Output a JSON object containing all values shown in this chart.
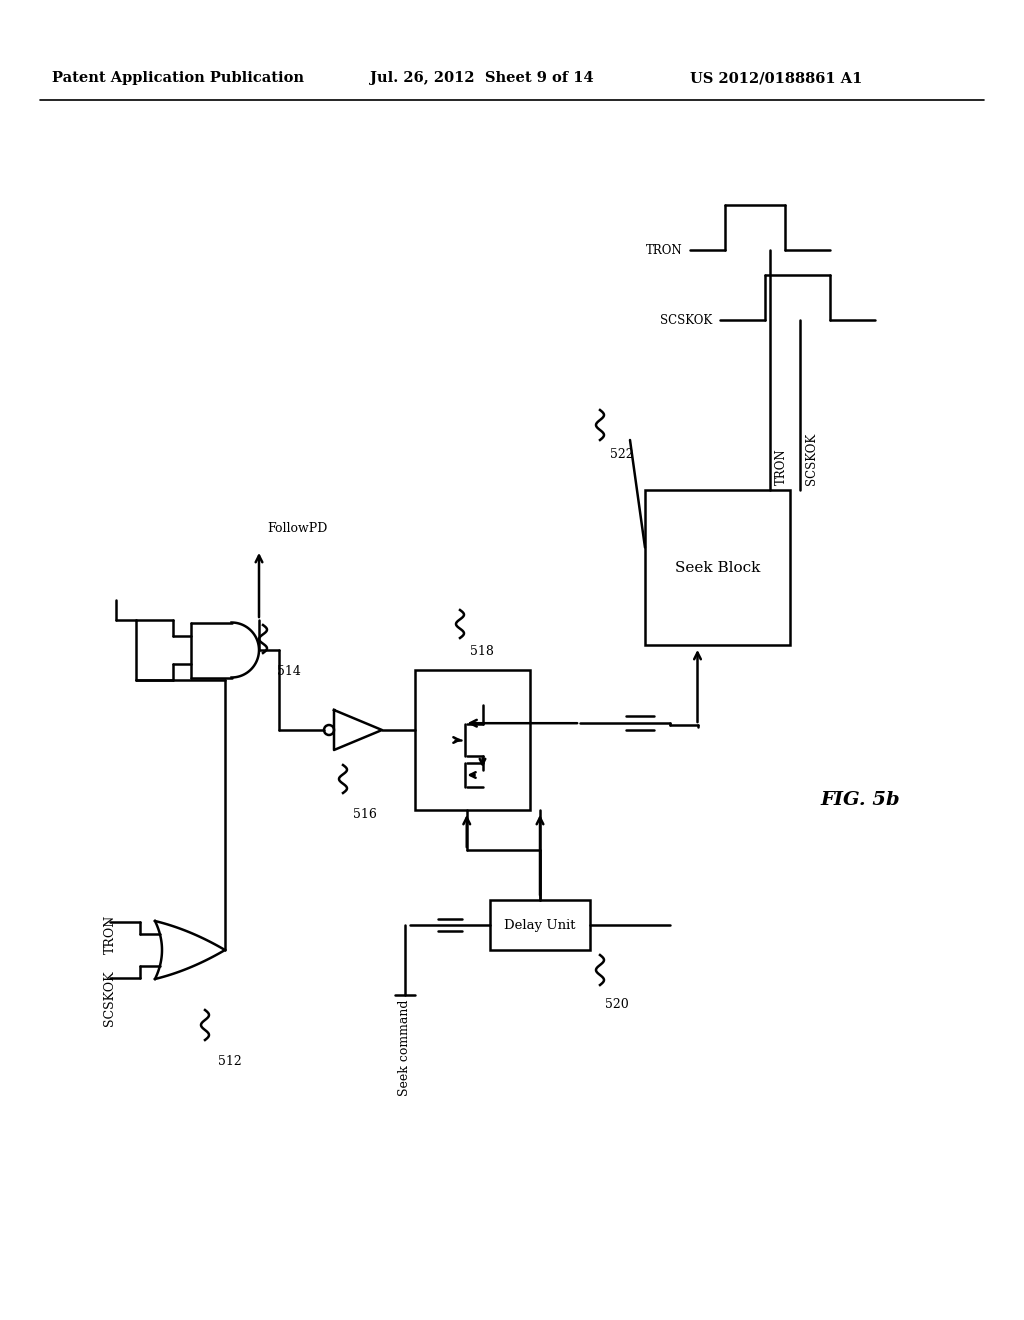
{
  "title_left": "Patent Application Publication",
  "title_mid": "Jul. 26, 2012  Sheet 9 of 14",
  "title_right": "US 2012/0188861 A1",
  "fig_label": "FIG. 5b",
  "background_color": "#ffffff",
  "line_color": "#000000"
}
